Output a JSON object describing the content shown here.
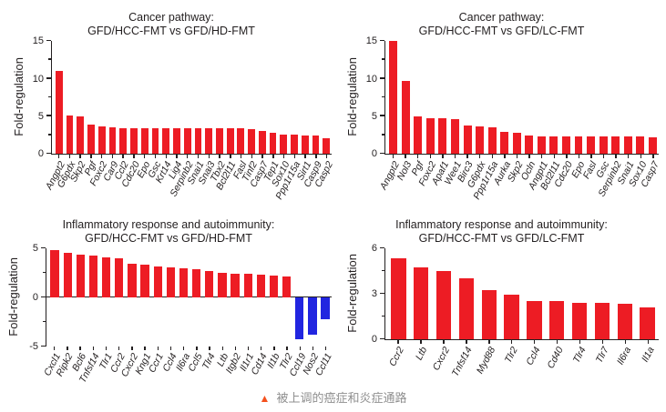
{
  "colors": {
    "positive_bar": "#ed1c24",
    "negative_bar": "#2125e0",
    "axis": "#231f20",
    "caption_text": "#8f8f8f",
    "caption_icon": "#f4511e"
  },
  "caption": {
    "icon": "▲",
    "icon_name": "triangle-icon",
    "text": "被上调的癌症和炎症通路"
  },
  "chart_data": [
    {
      "type": "bar",
      "title_line1": "Cancer pathway:",
      "title_line2": "GFD/HCC-FMT vs GFD/HD-FMT",
      "ylabel": "Fold-regulation",
      "ylim": [
        0,
        15
      ],
      "yticks": [
        0,
        5,
        10,
        15
      ],
      "grid": false,
      "legend": "none",
      "categories": [
        "Angpt2",
        "G6pdx",
        "Skp2",
        "Pgf",
        "Foxc2",
        "Car9",
        "Ccl2",
        "Cdc20",
        "Epo",
        "Gsc",
        "Krt14",
        "Lig4",
        "Serpinb2",
        "Snai1",
        "Snai3",
        "Tbx2",
        "Bcl2l11",
        "Fasl",
        "Tinf2",
        "Casp7",
        "Tep1",
        "Sox10",
        "Ppp1r15a",
        "Sirt1",
        "Casp9",
        "Casp2"
      ],
      "values": [
        11,
        5,
        4.9,
        3.8,
        3.6,
        3.4,
        3.3,
        3.3,
        3.3,
        3.3,
        3.3,
        3.3,
        3.3,
        3.3,
        3.3,
        3.3,
        3.3,
        3.3,
        3.2,
        3.0,
        2.7,
        2.5,
        2.5,
        2.4,
        2.4,
        2.0
      ]
    },
    {
      "type": "bar",
      "title_line1": "Cancer pathway:",
      "title_line2": "GFD/HCC-FMT vs GFD/LC-FMT",
      "ylabel": "Fold-regulation",
      "ylim": [
        0,
        15
      ],
      "yticks": [
        0,
        5,
        10,
        15
      ],
      "grid": false,
      "legend": "none",
      "categories": [
        "Angpt2",
        "Nol3",
        "Pgf",
        "Foxc2",
        "Apaf1",
        "Wee1",
        "Birc3",
        "G6pdx",
        "Ppp1r15a",
        "Aurka",
        "Skp2",
        "Ocln",
        "Angpt1",
        "Bcl2l11",
        "Cdc20",
        "Epo",
        "Fasl",
        "Gsc",
        "Serpinb2",
        "Snai1",
        "Sox10",
        "Casp7"
      ],
      "values": [
        15,
        9.6,
        4.9,
        4.6,
        4.6,
        4.5,
        3.7,
        3.6,
        3.5,
        2.8,
        2.7,
        2.4,
        2.3,
        2.3,
        2.3,
        2.3,
        2.3,
        2.3,
        2.3,
        2.3,
        2.3,
        2.1
      ]
    },
    {
      "type": "bar",
      "title_line1": "Inflammatory response and autoimmunity:",
      "title_line2": "GFD/HCC-FMT vs GFD/HD-FMT",
      "ylabel": "Fold-regulation",
      "ylim": [
        -5,
        5
      ],
      "yticks": [
        -5,
        0,
        5
      ],
      "grid": false,
      "legend": "none",
      "categories": [
        "Cxcl1",
        "Ripk2",
        "Bcl6",
        "Tnfsf14",
        "Tlr1",
        "Ccr2",
        "Cxcr2",
        "Kng1",
        "Ccr1",
        "Ccl4",
        "Il6ra",
        "Ccl5",
        "Tlr4",
        "Ltb",
        "Itgb2",
        "Il1r1",
        "Cd14",
        "Il1b",
        "Tlr2",
        "Ccl19",
        "Nos2",
        "Ccl11"
      ],
      "values": [
        4.8,
        4.5,
        4.3,
        4.2,
        4.0,
        3.9,
        3.4,
        3.3,
        3.1,
        3.0,
        2.9,
        2.8,
        2.6,
        2.5,
        2.4,
        2.4,
        2.3,
        2.2,
        2.1,
        -4.3,
        -3.8,
        -2.3
      ]
    },
    {
      "type": "bar",
      "title_line1": "Inflammatory response and autoimmunity:",
      "title_line2": "GFD/HCC-FMT vs GFD/LC-FMT",
      "ylabel": "Fold-regulation",
      "ylim": [
        0,
        6
      ],
      "yticks": [
        0,
        3,
        6
      ],
      "grid": false,
      "legend": "none",
      "categories": [
        "Ccr2",
        "Ltb",
        "Cxcr2",
        "Tnfsf14",
        "Myd88",
        "Tlr2",
        "Ccl4",
        "Cd40",
        "Tlr4",
        "Tlr7",
        "Il6ra",
        "Il1a"
      ],
      "values": [
        5.3,
        4.7,
        4.5,
        4.0,
        3.2,
        2.9,
        2.5,
        2.5,
        2.4,
        2.4,
        2.3,
        2.1
      ]
    }
  ]
}
